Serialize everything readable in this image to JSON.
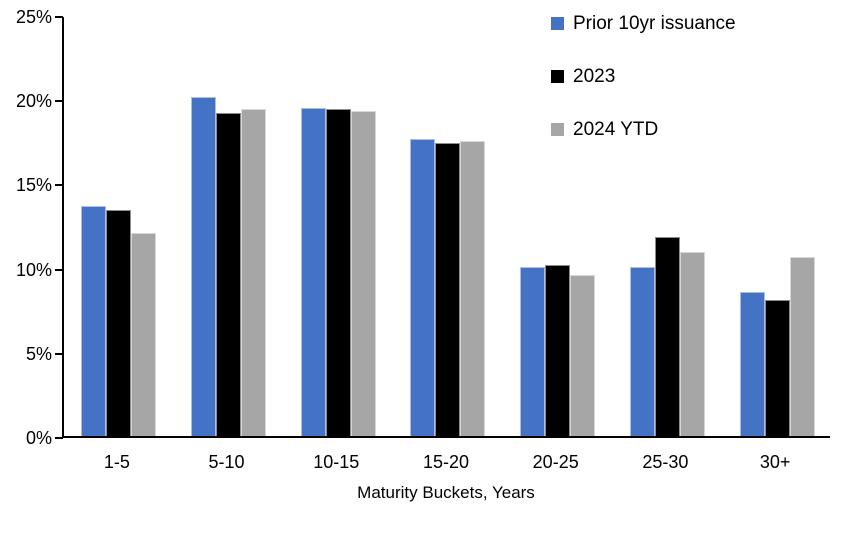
{
  "chart_data": {
    "type": "bar",
    "title": "",
    "categories": [
      "1-5",
      "5-10",
      "10-15",
      "15-20",
      "20-25",
      "25-30",
      "30+"
    ],
    "series": [
      {
        "name": "Prior 10yr issuance",
        "color": "#4472C4",
        "values": [
          13.7,
          20.2,
          19.6,
          17.7,
          10.1,
          10.1,
          8.6
        ]
      },
      {
        "name": "2023",
        "color": "#000000",
        "values": [
          13.5,
          19.3,
          19.5,
          17.5,
          10.2,
          11.9,
          8.1
        ]
      },
      {
        "name": "2024 YTD",
        "color": "#A6A6A6",
        "values": [
          12.1,
          19.5,
          19.4,
          17.6,
          9.6,
          11.0,
          10.7
        ]
      }
    ],
    "xlabel": "Maturity Buckets, Years",
    "ylabel": "",
    "ylim": [
      0,
      25
    ],
    "ytick_step": 5,
    "ytick_labels": [
      "0%",
      "5%",
      "10%",
      "15%",
      "20%",
      "25%"
    ],
    "yaxis_unit": "percent",
    "grid": false,
    "legend_position": "top-right",
    "background_color": "#FFFFFF",
    "axis_color": "#000000"
  }
}
